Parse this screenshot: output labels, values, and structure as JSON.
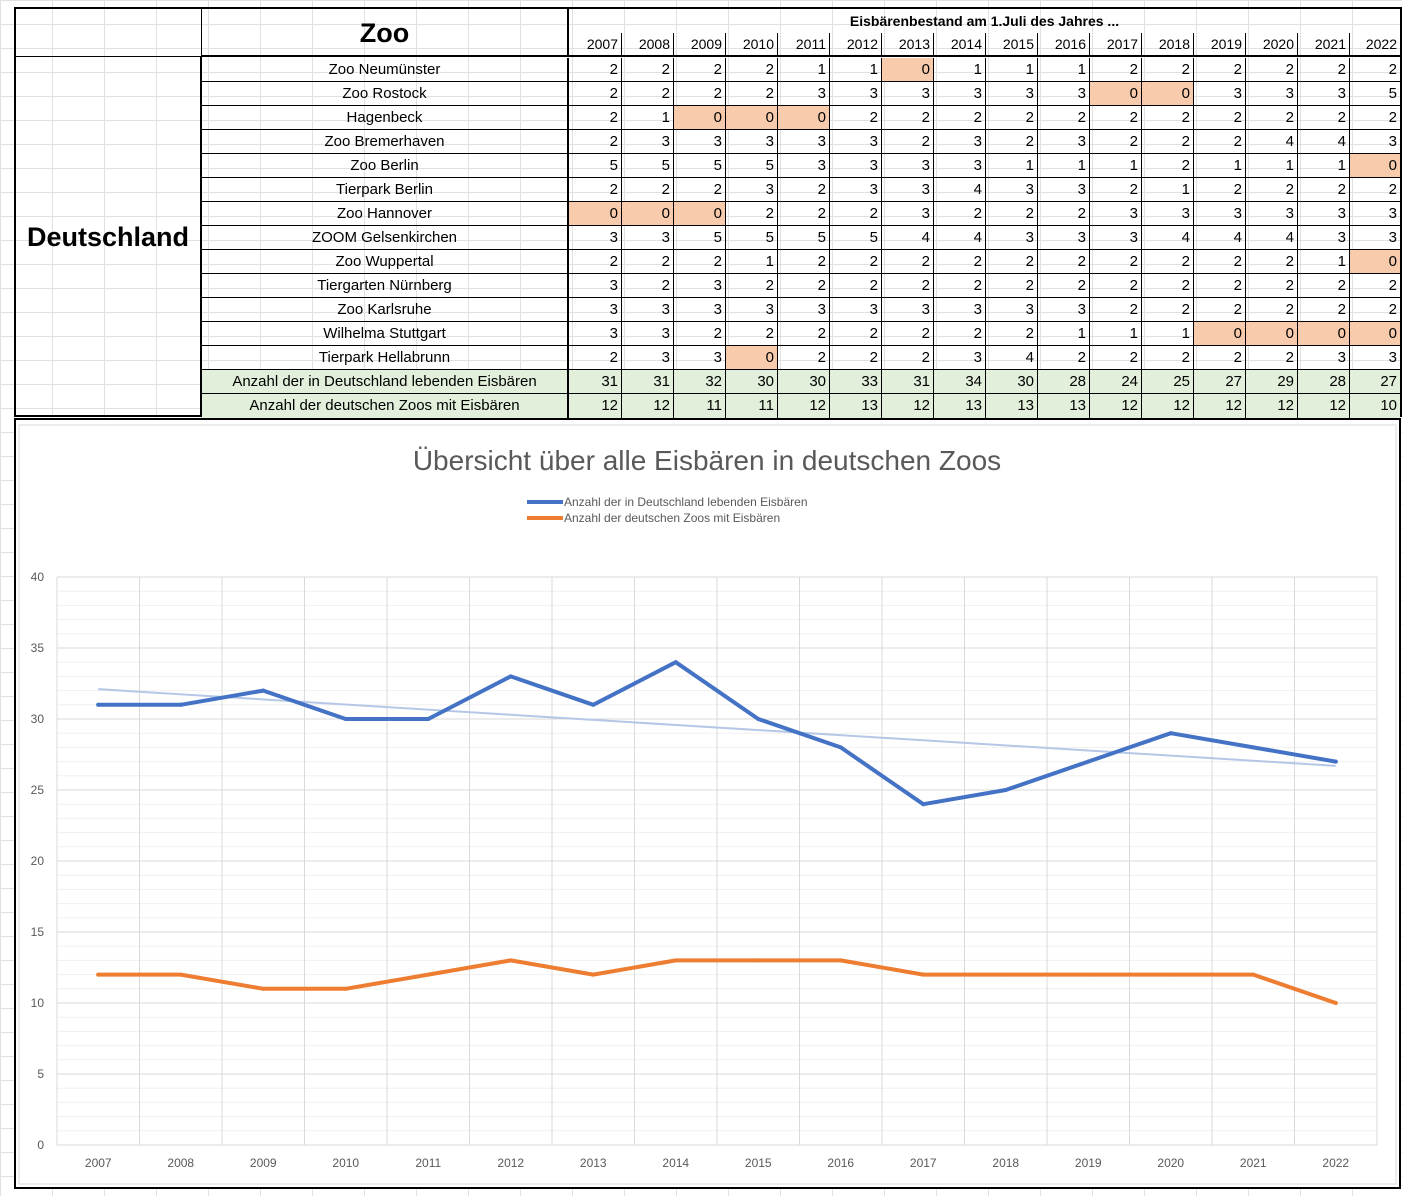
{
  "table": {
    "zoo_header": "Zoo",
    "country": "Deutschland",
    "title": "Eisbärenbestand am 1.Juli des Jahres ...",
    "years": [
      "2007",
      "2008",
      "2009",
      "2010",
      "2011",
      "2012",
      "2013",
      "2014",
      "2015",
      "2016",
      "2017",
      "2018",
      "2019",
      "2020",
      "2021",
      "2022"
    ],
    "rows": [
      {
        "name": "Zoo Neumünster",
        "values": [
          2,
          2,
          2,
          2,
          1,
          1,
          0,
          1,
          1,
          1,
          2,
          2,
          2,
          2,
          2,
          2
        ]
      },
      {
        "name": "Zoo Rostock",
        "values": [
          2,
          2,
          2,
          2,
          3,
          3,
          3,
          3,
          3,
          3,
          0,
          0,
          3,
          3,
          3,
          5
        ]
      },
      {
        "name": "Hagenbeck",
        "values": [
          2,
          1,
          0,
          0,
          0,
          2,
          2,
          2,
          2,
          2,
          2,
          2,
          2,
          2,
          2,
          2
        ]
      },
      {
        "name": "Zoo Bremerhaven",
        "values": [
          2,
          3,
          3,
          3,
          3,
          3,
          2,
          3,
          2,
          3,
          2,
          2,
          2,
          4,
          4,
          3
        ]
      },
      {
        "name": "Zoo Berlin",
        "values": [
          5,
          5,
          5,
          5,
          3,
          3,
          3,
          3,
          1,
          1,
          1,
          2,
          1,
          1,
          1,
          0
        ]
      },
      {
        "name": "Tierpark Berlin",
        "values": [
          2,
          2,
          2,
          3,
          2,
          3,
          3,
          4,
          3,
          3,
          2,
          1,
          2,
          2,
          2,
          2
        ]
      },
      {
        "name": "Zoo Hannover",
        "values": [
          0,
          0,
          0,
          2,
          2,
          2,
          3,
          2,
          2,
          2,
          3,
          3,
          3,
          3,
          3,
          3
        ]
      },
      {
        "name": "ZOOM Gelsenkirchen",
        "values": [
          3,
          3,
          5,
          5,
          5,
          5,
          4,
          4,
          3,
          3,
          3,
          4,
          4,
          4,
          3,
          3
        ]
      },
      {
        "name": "Zoo Wuppertal",
        "values": [
          2,
          2,
          2,
          1,
          2,
          2,
          2,
          2,
          2,
          2,
          2,
          2,
          2,
          2,
          1,
          0
        ]
      },
      {
        "name": "Tiergarten Nürnberg",
        "values": [
          3,
          2,
          3,
          2,
          2,
          2,
          2,
          2,
          2,
          2,
          2,
          2,
          2,
          2,
          2,
          2
        ]
      },
      {
        "name": "Zoo Karlsruhe",
        "values": [
          3,
          3,
          3,
          3,
          3,
          3,
          3,
          3,
          3,
          3,
          2,
          2,
          2,
          2,
          2,
          2
        ]
      },
      {
        "name": "Wilhelma Stuttgart",
        "values": [
          3,
          3,
          2,
          2,
          2,
          2,
          2,
          2,
          2,
          1,
          1,
          1,
          0,
          0,
          0,
          0
        ]
      },
      {
        "name": "Tierpark Hellabrunn",
        "values": [
          2,
          3,
          3,
          0,
          2,
          2,
          2,
          3,
          4,
          2,
          2,
          2,
          2,
          2,
          3,
          3
        ]
      }
    ],
    "totals": [
      {
        "name": "Anzahl der in Deutschland lebenden Eisbären",
        "values": [
          31,
          31,
          32,
          30,
          30,
          33,
          31,
          34,
          30,
          28,
          24,
          25,
          27,
          29,
          28,
          27
        ]
      },
      {
        "name": "Anzahl der deutschen Zoos mit Eisbären",
        "values": [
          12,
          12,
          11,
          11,
          12,
          13,
          12,
          13,
          13,
          13,
          12,
          12,
          12,
          12,
          12,
          10
        ]
      }
    ],
    "colors": {
      "highlight": "#f8cbad",
      "total_fill": "#e2efda"
    }
  },
  "chart_data": {
    "type": "line",
    "title": "Übersicht über alle Eisbären in deutschen Zoos",
    "categories": [
      "2007",
      "2008",
      "2009",
      "2010",
      "2011",
      "2012",
      "2013",
      "2014",
      "2015",
      "2016",
      "2017",
      "2018",
      "2019",
      "2020",
      "2021",
      "2022"
    ],
    "series": [
      {
        "name": "Anzahl der in Deutschland lebenden Eisbären",
        "color": "#4472c4",
        "values": [
          31,
          31,
          32,
          30,
          30,
          33,
          31,
          34,
          30,
          28,
          24,
          25,
          27,
          29,
          28,
          27
        ]
      },
      {
        "name": "Anzahl der deutschen Zoos mit Eisbären",
        "color": "#ed7d31",
        "values": [
          12,
          12,
          11,
          11,
          12,
          13,
          12,
          13,
          13,
          13,
          12,
          12,
          12,
          12,
          12,
          10
        ]
      }
    ],
    "trendline": {
      "series": "Anzahl der in Deutschland lebenden Eisbären",
      "type": "linear",
      "color": "#b4c7e7",
      "start": 32.1,
      "end": 26.7
    },
    "ylim": [
      0,
      40
    ],
    "yticks": [
      0,
      5,
      10,
      15,
      20,
      25,
      30,
      35,
      40
    ],
    "xlabel": "",
    "ylabel": "",
    "legend": "top-center",
    "grid": true
  }
}
